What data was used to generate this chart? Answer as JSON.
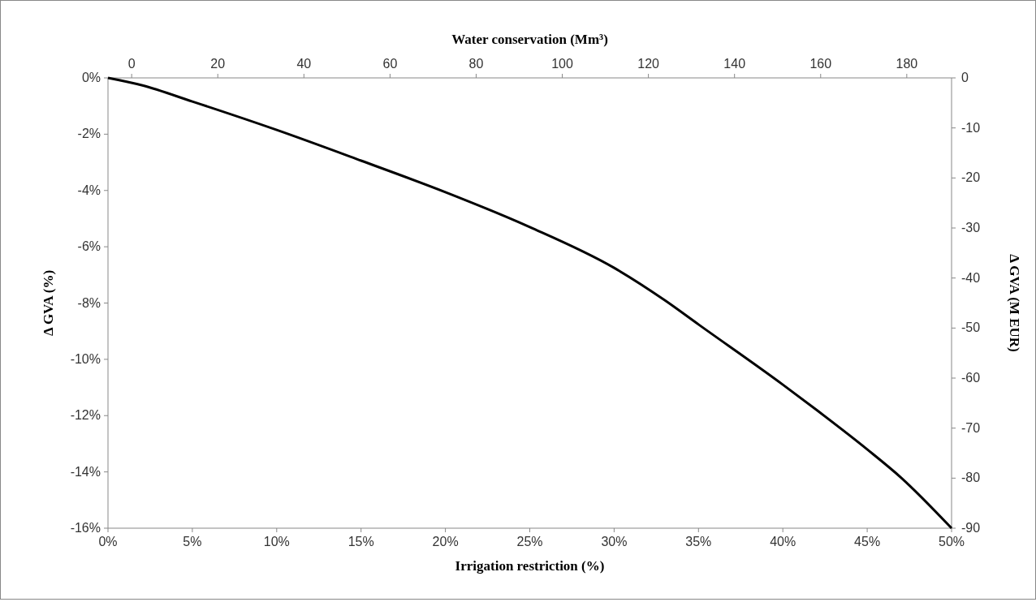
{
  "chart_data": {
    "type": "line",
    "xlabel": "Irrigation restriction (%)",
    "ylabel": "Δ GVA (%)",
    "y2label": "Δ GVA (M EUR)",
    "x2label": "Water conservation (Mm³)",
    "x": [
      0,
      2,
      5,
      10,
      15,
      20,
      25,
      30,
      33,
      35,
      40,
      42,
      45,
      47,
      50
    ],
    "series": [
      {
        "color": "#000000",
        "values": [
          0,
          -0.26,
          -0.84,
          -1.85,
          -2.94,
          -4.06,
          -5.3,
          -6.75,
          -7.9,
          -8.76,
          -10.9,
          -11.8,
          -13.2,
          -14.2,
          -16
        ]
      }
    ],
    "xlim": [
      0,
      50
    ],
    "xticks": [
      {
        "value": 0,
        "label": "0%"
      },
      {
        "value": 5,
        "label": "5%"
      },
      {
        "value": 10,
        "label": "10%"
      },
      {
        "value": 15,
        "label": "15%"
      },
      {
        "value": 20,
        "label": "20%"
      },
      {
        "value": 25,
        "label": "25%"
      },
      {
        "value": 30,
        "label": "30%"
      },
      {
        "value": 35,
        "label": "35%"
      },
      {
        "value": 40,
        "label": "40%"
      },
      {
        "value": 45,
        "label": "45%"
      },
      {
        "value": 50,
        "label": "50%"
      }
    ],
    "ylim": [
      -16,
      0
    ],
    "yticks": [
      {
        "value": 0,
        "label": "0%"
      },
      {
        "value": -2,
        "label": "-2%"
      },
      {
        "value": -4,
        "label": "-4%"
      },
      {
        "value": -6,
        "label": "-6%"
      },
      {
        "value": -8,
        "label": "-8%"
      },
      {
        "value": -10,
        "label": "-10%"
      },
      {
        "value": -12,
        "label": "-12%"
      },
      {
        "value": -14,
        "label": "-14%"
      },
      {
        "value": -16,
        "label": "-16%"
      }
    ],
    "y2lim": [
      -90,
      0
    ],
    "y2ticks": [
      0,
      -10,
      -20,
      -30,
      -40,
      -50,
      -60,
      -70,
      -80,
      -90
    ],
    "x2lim": [
      -5.5,
      190.4
    ],
    "x2ticks": [
      0,
      20,
      40,
      60,
      80,
      100,
      120,
      140,
      160,
      180
    ],
    "grid": false,
    "marker": "none",
    "line_style": "solid"
  }
}
